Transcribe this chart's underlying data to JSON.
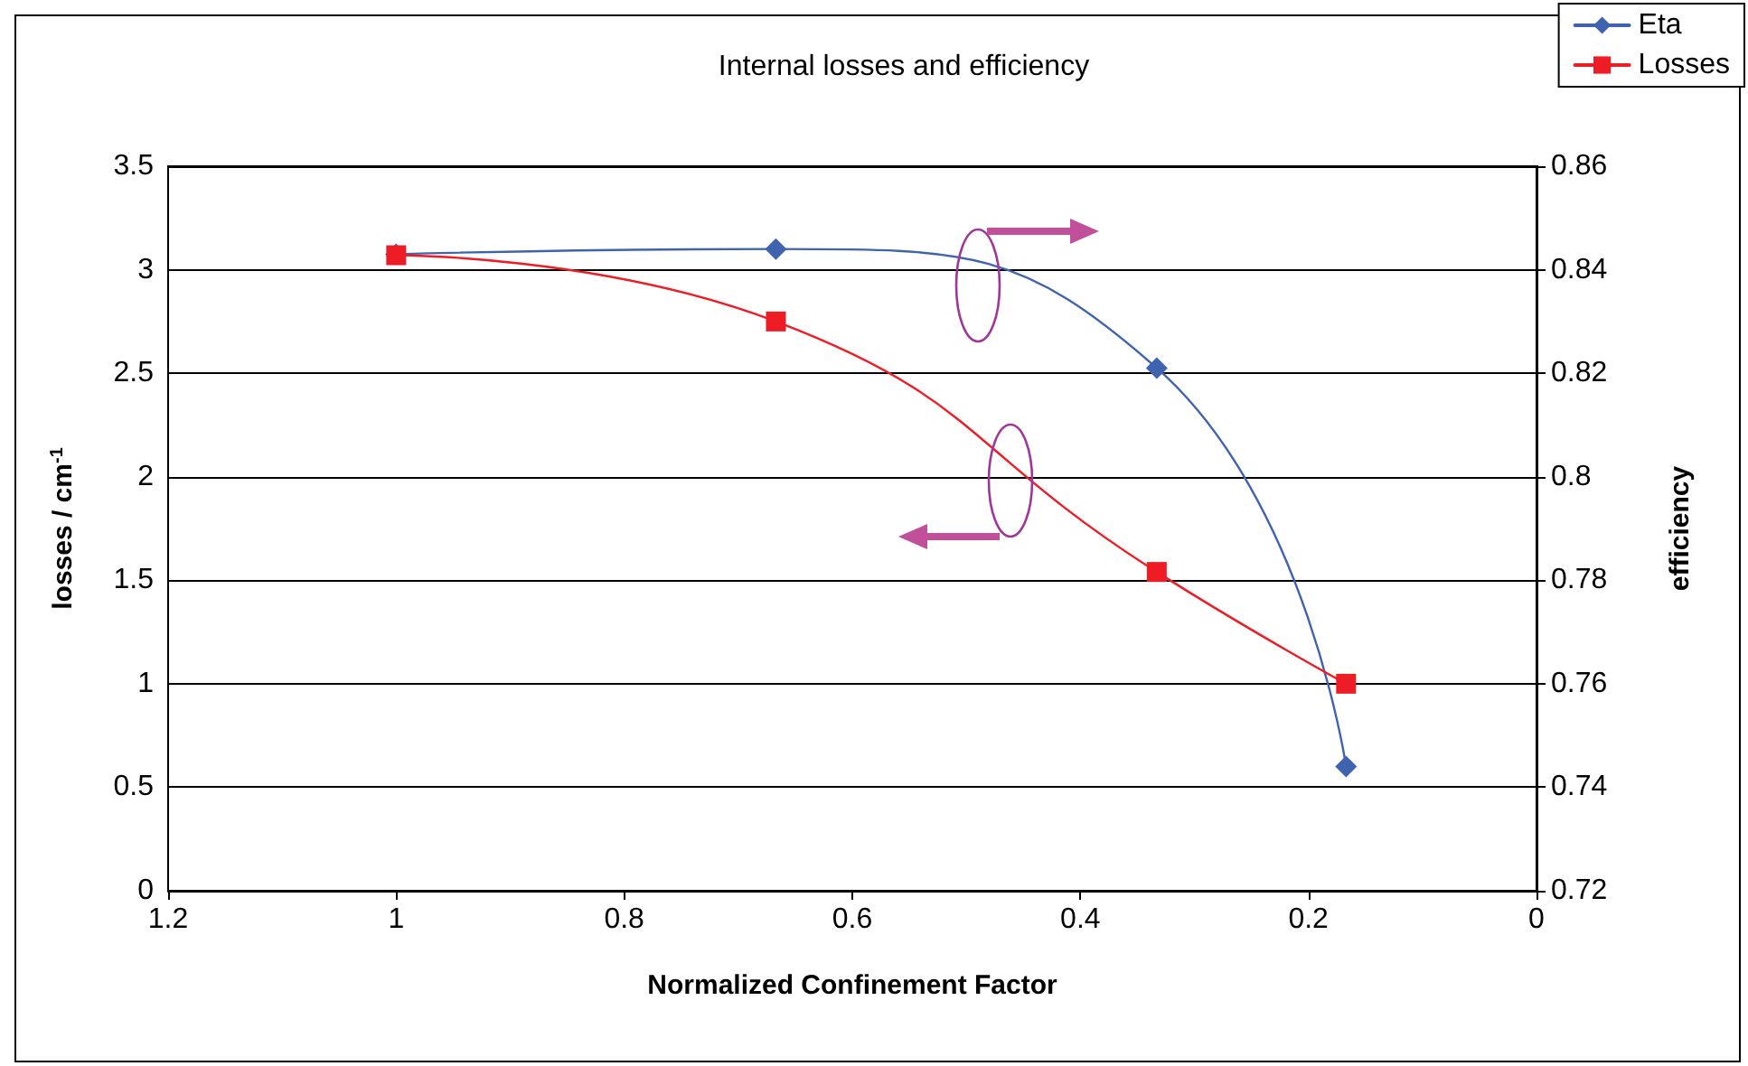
{
  "chart_data": {
    "type": "line",
    "title": "Internal losses and efficiency",
    "xlabel": "Normalized Confinement Factor",
    "ylabel": "losses / cm$^{-1}$",
    "y2label": "efficiency",
    "x": [
      1,
      0.667,
      0.333,
      0.167
    ],
    "series": [
      {
        "name": "Eta",
        "color": "#4063b0",
        "values": [
          0.843,
          0.844,
          0.821,
          0.744
        ],
        "axis": "y2",
        "marker": "diamond"
      },
      {
        "name": "Losses",
        "color": "#ee1c25",
        "values": [
          3.07,
          2.75,
          1.54,
          1.0
        ],
        "marker": "square"
      }
    ],
    "xlim": [
      1.2,
      0
    ],
    "xticks": [
      1.2,
      1,
      0.8,
      0.6,
      0.4,
      0.2,
      0
    ],
    "ylim": [
      0,
      3.5
    ],
    "yticks": [
      0,
      0.5,
      1,
      1.5,
      2,
      2.5,
      3,
      3.5
    ],
    "y2lim": [
      0.72,
      0.86
    ],
    "y2ticks": [
      0.72,
      0.74,
      0.76,
      0.78,
      0.8,
      0.82,
      0.84,
      0.86
    ],
    "grid": "y",
    "legend": "top right",
    "line_style": "solid"
  }
}
